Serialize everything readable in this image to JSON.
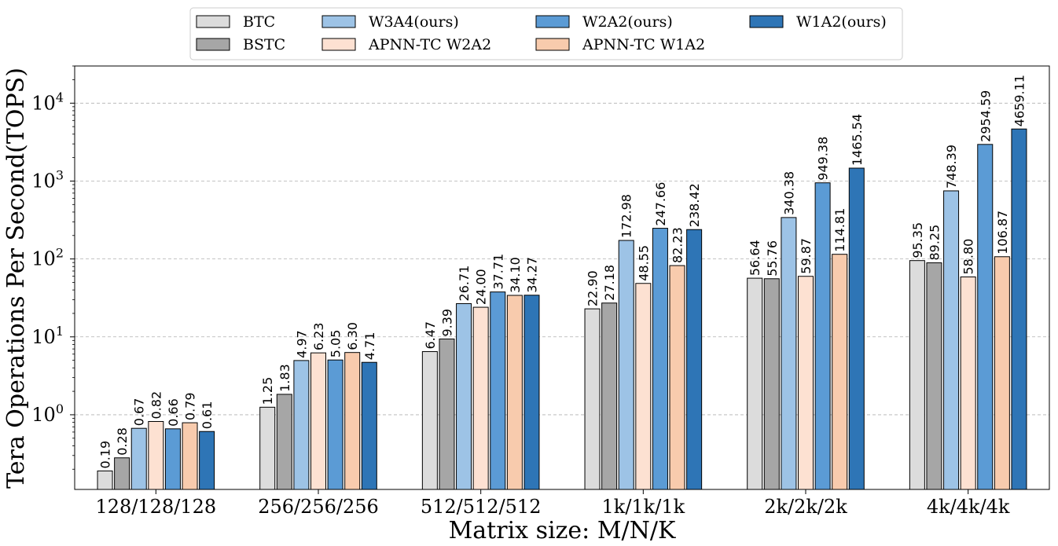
{
  "chart_data": {
    "type": "bar",
    "scale": "log",
    "xlabel": "Matrix size: M/N/K",
    "ylabel": "Tera Operations Per Second(TOPS)",
    "categories": [
      "128/128/128",
      "256/256/256",
      "512/512/512",
      "1k/1k/1k",
      "2k/2k/2k",
      "4k/4k/4k"
    ],
    "ylim": [
      0.11,
      30000
    ],
    "yticks": [
      {
        "value": 1,
        "base": "10",
        "exp": "0"
      },
      {
        "value": 10,
        "base": "10",
        "exp": "1"
      },
      {
        "value": 100,
        "base": "10",
        "exp": "2"
      },
      {
        "value": 1000,
        "base": "10",
        "exp": "3"
      },
      {
        "value": 10000,
        "base": "10",
        "exp": "4"
      }
    ],
    "grid": "y-dashed",
    "legend_position": "top-center-outside",
    "series": [
      {
        "name": "BTC",
        "color": "#dcdcdc",
        "values": [
          0.19,
          1.25,
          6.47,
          22.9,
          56.64,
          95.35
        ],
        "labels": [
          "0.19",
          "1.25",
          "6.47",
          "22.90",
          "56.64",
          "95.35"
        ]
      },
      {
        "name": "BSTC",
        "color": "#a6a6a6",
        "values": [
          0.28,
          1.83,
          9.39,
          27.18,
          55.76,
          89.25
        ],
        "labels": [
          "0.28",
          "1.83",
          "9.39",
          "27.18",
          "55.76",
          "89.25"
        ]
      },
      {
        "name": "W3A4(ours)",
        "color": "#9dc3e6",
        "values": [
          0.67,
          4.97,
          26.71,
          172.98,
          340.38,
          748.39
        ],
        "labels": [
          "0.67",
          "4.97",
          "26.71",
          "172.98",
          "340.38",
          "748.39"
        ]
      },
      {
        "name": "APNN-TC W2A2",
        "color": "#fde1d2",
        "values": [
          0.82,
          6.23,
          24.0,
          48.55,
          59.87,
          58.8
        ],
        "labels": [
          "0.82",
          "6.23",
          "24.00",
          "48.55",
          "59.87",
          "58.80"
        ]
      },
      {
        "name": "W2A2(ours)",
        "color": "#5b9bd5",
        "values": [
          0.66,
          5.05,
          37.71,
          247.66,
          949.38,
          2954.59
        ],
        "labels": [
          "0.66",
          "5.05",
          "37.71",
          "247.66",
          "949.38",
          "2954.59"
        ]
      },
      {
        "name": "APNN-TC W1A2",
        "color": "#f8cbad",
        "values": [
          0.79,
          6.3,
          34.1,
          82.23,
          114.81,
          106.87
        ],
        "labels": [
          "0.79",
          "6.30",
          "34.10",
          "82.23",
          "114.81",
          "106.87"
        ]
      },
      {
        "name": "W1A2(ours)",
        "color": "#2e75b6",
        "values": [
          0.61,
          4.71,
          34.27,
          238.42,
          1465.54,
          4659.11
        ],
        "labels": [
          "0.61",
          "4.71",
          "34.27",
          "238.42",
          "1465.54",
          "4659.11"
        ]
      }
    ]
  }
}
